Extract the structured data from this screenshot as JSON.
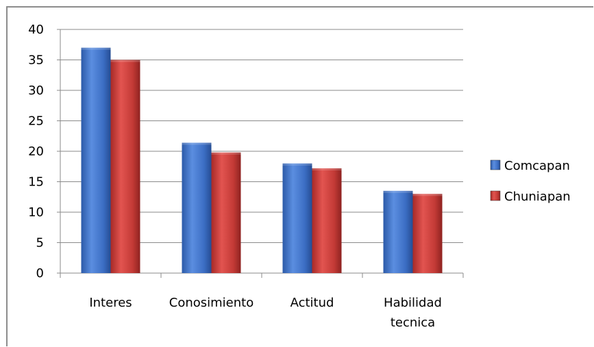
{
  "chart_data": {
    "type": "bar",
    "title": "",
    "xlabel": "",
    "ylabel": "",
    "categories": [
      [
        "Interes"
      ],
      [
        "Conosimiento"
      ],
      [
        "Actitud"
      ],
      [
        "Habilidad",
        "tecnica"
      ]
    ],
    "ylim": [
      0,
      40
    ],
    "yticks": [
      0,
      5,
      10,
      15,
      20,
      25,
      30,
      35,
      40
    ],
    "grid": true,
    "legend_position": "right",
    "series": [
      {
        "name": "Comcapan",
        "values": [
          37,
          21.4,
          18,
          13.5
        ],
        "color": "#3d6fc1"
      },
      {
        "name": "Chuniapan",
        "values": [
          35,
          19.8,
          17.2,
          13
        ],
        "color": "#c23a37"
      }
    ]
  }
}
